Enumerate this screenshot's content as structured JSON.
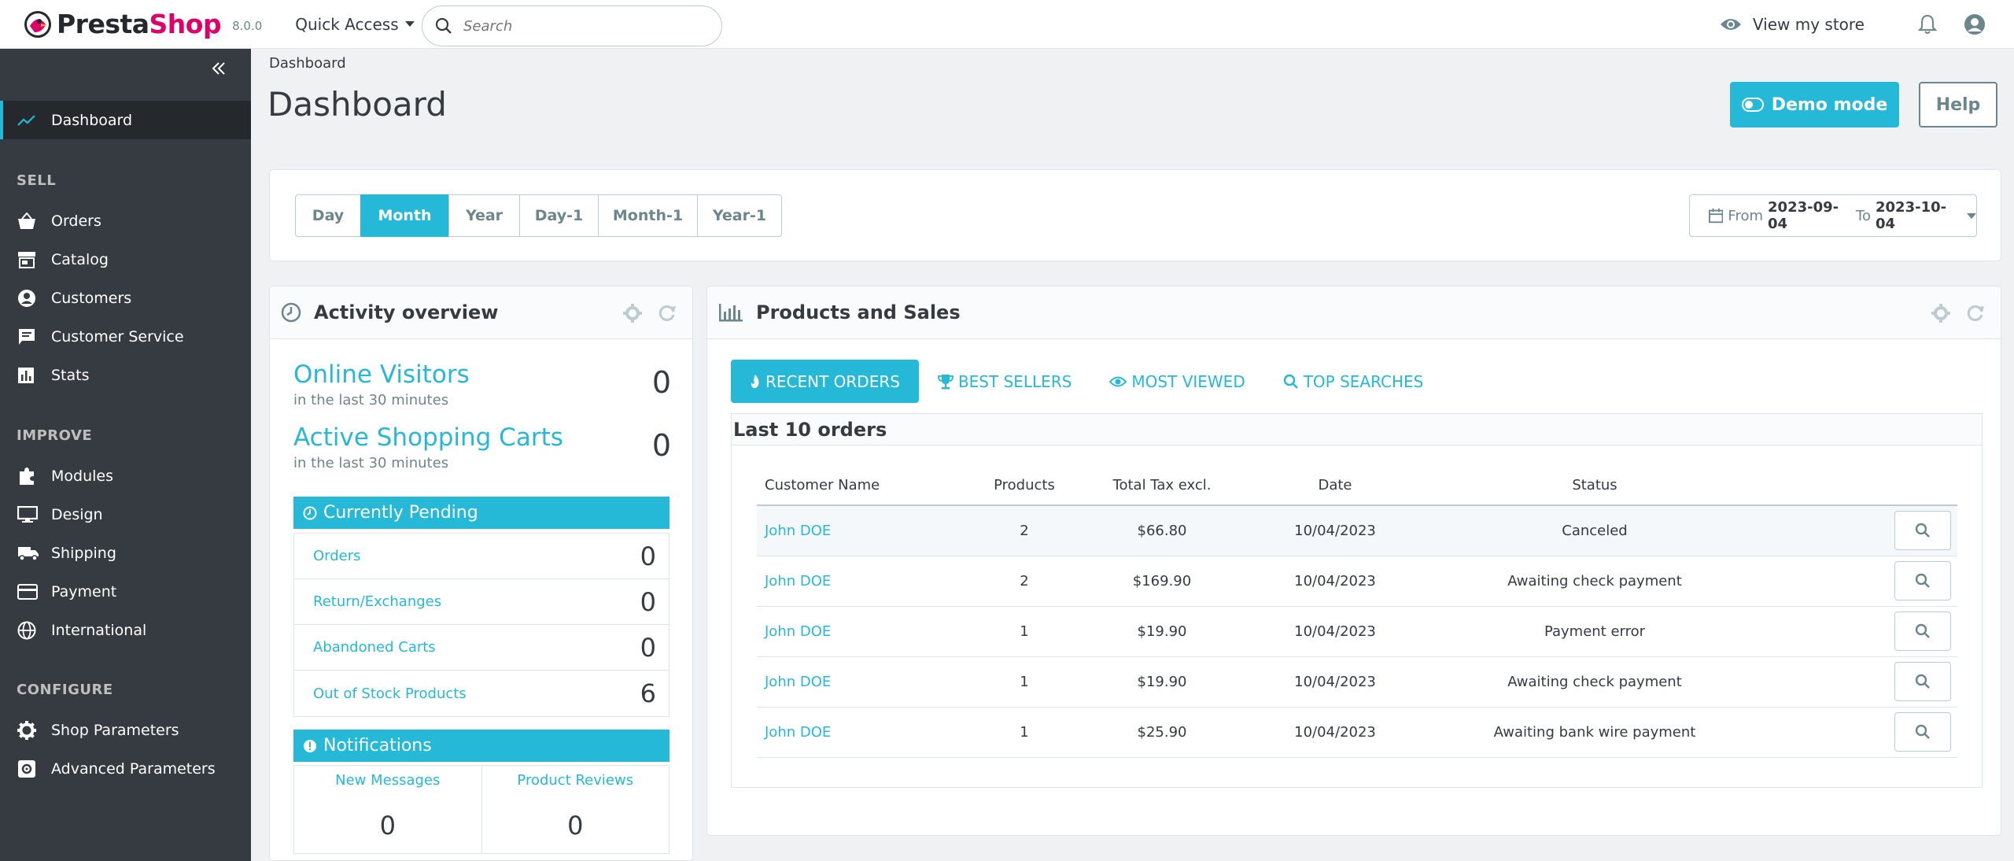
{
  "header": {
    "logo_prefix": "Presta",
    "logo_suffix": "Shop",
    "version": "8.0.0",
    "quick_access": "Quick Access",
    "search_placeholder": "Search",
    "view_store": "View my store"
  },
  "sidebar": {
    "dashboard": "Dashboard",
    "sections": {
      "sell": "SELL",
      "improve": "IMPROVE",
      "configure": "CONFIGURE"
    },
    "sell_items": [
      "Orders",
      "Catalog",
      "Customers",
      "Customer Service",
      "Stats"
    ],
    "improve_items": [
      "Modules",
      "Design",
      "Shipping",
      "Payment",
      "International"
    ],
    "configure_items": [
      "Shop Parameters",
      "Advanced Parameters"
    ]
  },
  "page": {
    "breadcrumb": "Dashboard",
    "title": "Dashboard",
    "demo_button": "Demo mode",
    "help_button": "Help"
  },
  "period": {
    "buttons": [
      "Day",
      "Month",
      "Year",
      "Day-1",
      "Month-1",
      "Year-1"
    ],
    "active": "Month",
    "from_label": "From",
    "from_date": "2023-09-04",
    "to_label": "To",
    "to_date": "2023-10-04"
  },
  "activity": {
    "title": "Activity overview",
    "online_visitors": {
      "label": "Online Visitors",
      "sub": "in the last 30 minutes",
      "value": "0"
    },
    "active_carts": {
      "label": "Active Shopping Carts",
      "sub": "in the last 30 minutes",
      "value": "0"
    },
    "pending_title": "Currently Pending",
    "pending": [
      {
        "label": "Orders",
        "value": "0"
      },
      {
        "label": "Return/Exchanges",
        "value": "0"
      },
      {
        "label": "Abandoned Carts",
        "value": "0"
      },
      {
        "label": "Out of Stock Products",
        "value": "6"
      }
    ],
    "notifications_title": "Notifications",
    "notifications": [
      {
        "label": "New Messages",
        "value": "0"
      },
      {
        "label": "Product Reviews",
        "value": "0"
      }
    ]
  },
  "sales": {
    "title": "Products and Sales",
    "tabs": [
      "RECENT ORDERS",
      "BEST SELLERS",
      "MOST VIEWED",
      "TOP SEARCHES"
    ],
    "orders_title": "Last 10 orders",
    "columns": [
      "Customer Name",
      "Products",
      "Total Tax excl.",
      "Date",
      "Status"
    ],
    "rows": [
      {
        "customer": "John DOE",
        "products": "2",
        "total": "$66.80",
        "date": "10/04/2023",
        "status": "Canceled"
      },
      {
        "customer": "John DOE",
        "products": "2",
        "total": "$169.90",
        "date": "10/04/2023",
        "status": "Awaiting check payment"
      },
      {
        "customer": "John DOE",
        "products": "1",
        "total": "$19.90",
        "date": "10/04/2023",
        "status": "Payment error"
      },
      {
        "customer": "John DOE",
        "products": "1",
        "total": "$19.90",
        "date": "10/04/2023",
        "status": "Awaiting check payment"
      },
      {
        "customer": "John DOE",
        "products": "1",
        "total": "$25.90",
        "date": "10/04/2023",
        "status": "Awaiting bank wire payment"
      }
    ]
  },
  "colors": {
    "accent": "#25b9d7",
    "sidebar_bg": "#363a41",
    "brand": "#df0067"
  }
}
